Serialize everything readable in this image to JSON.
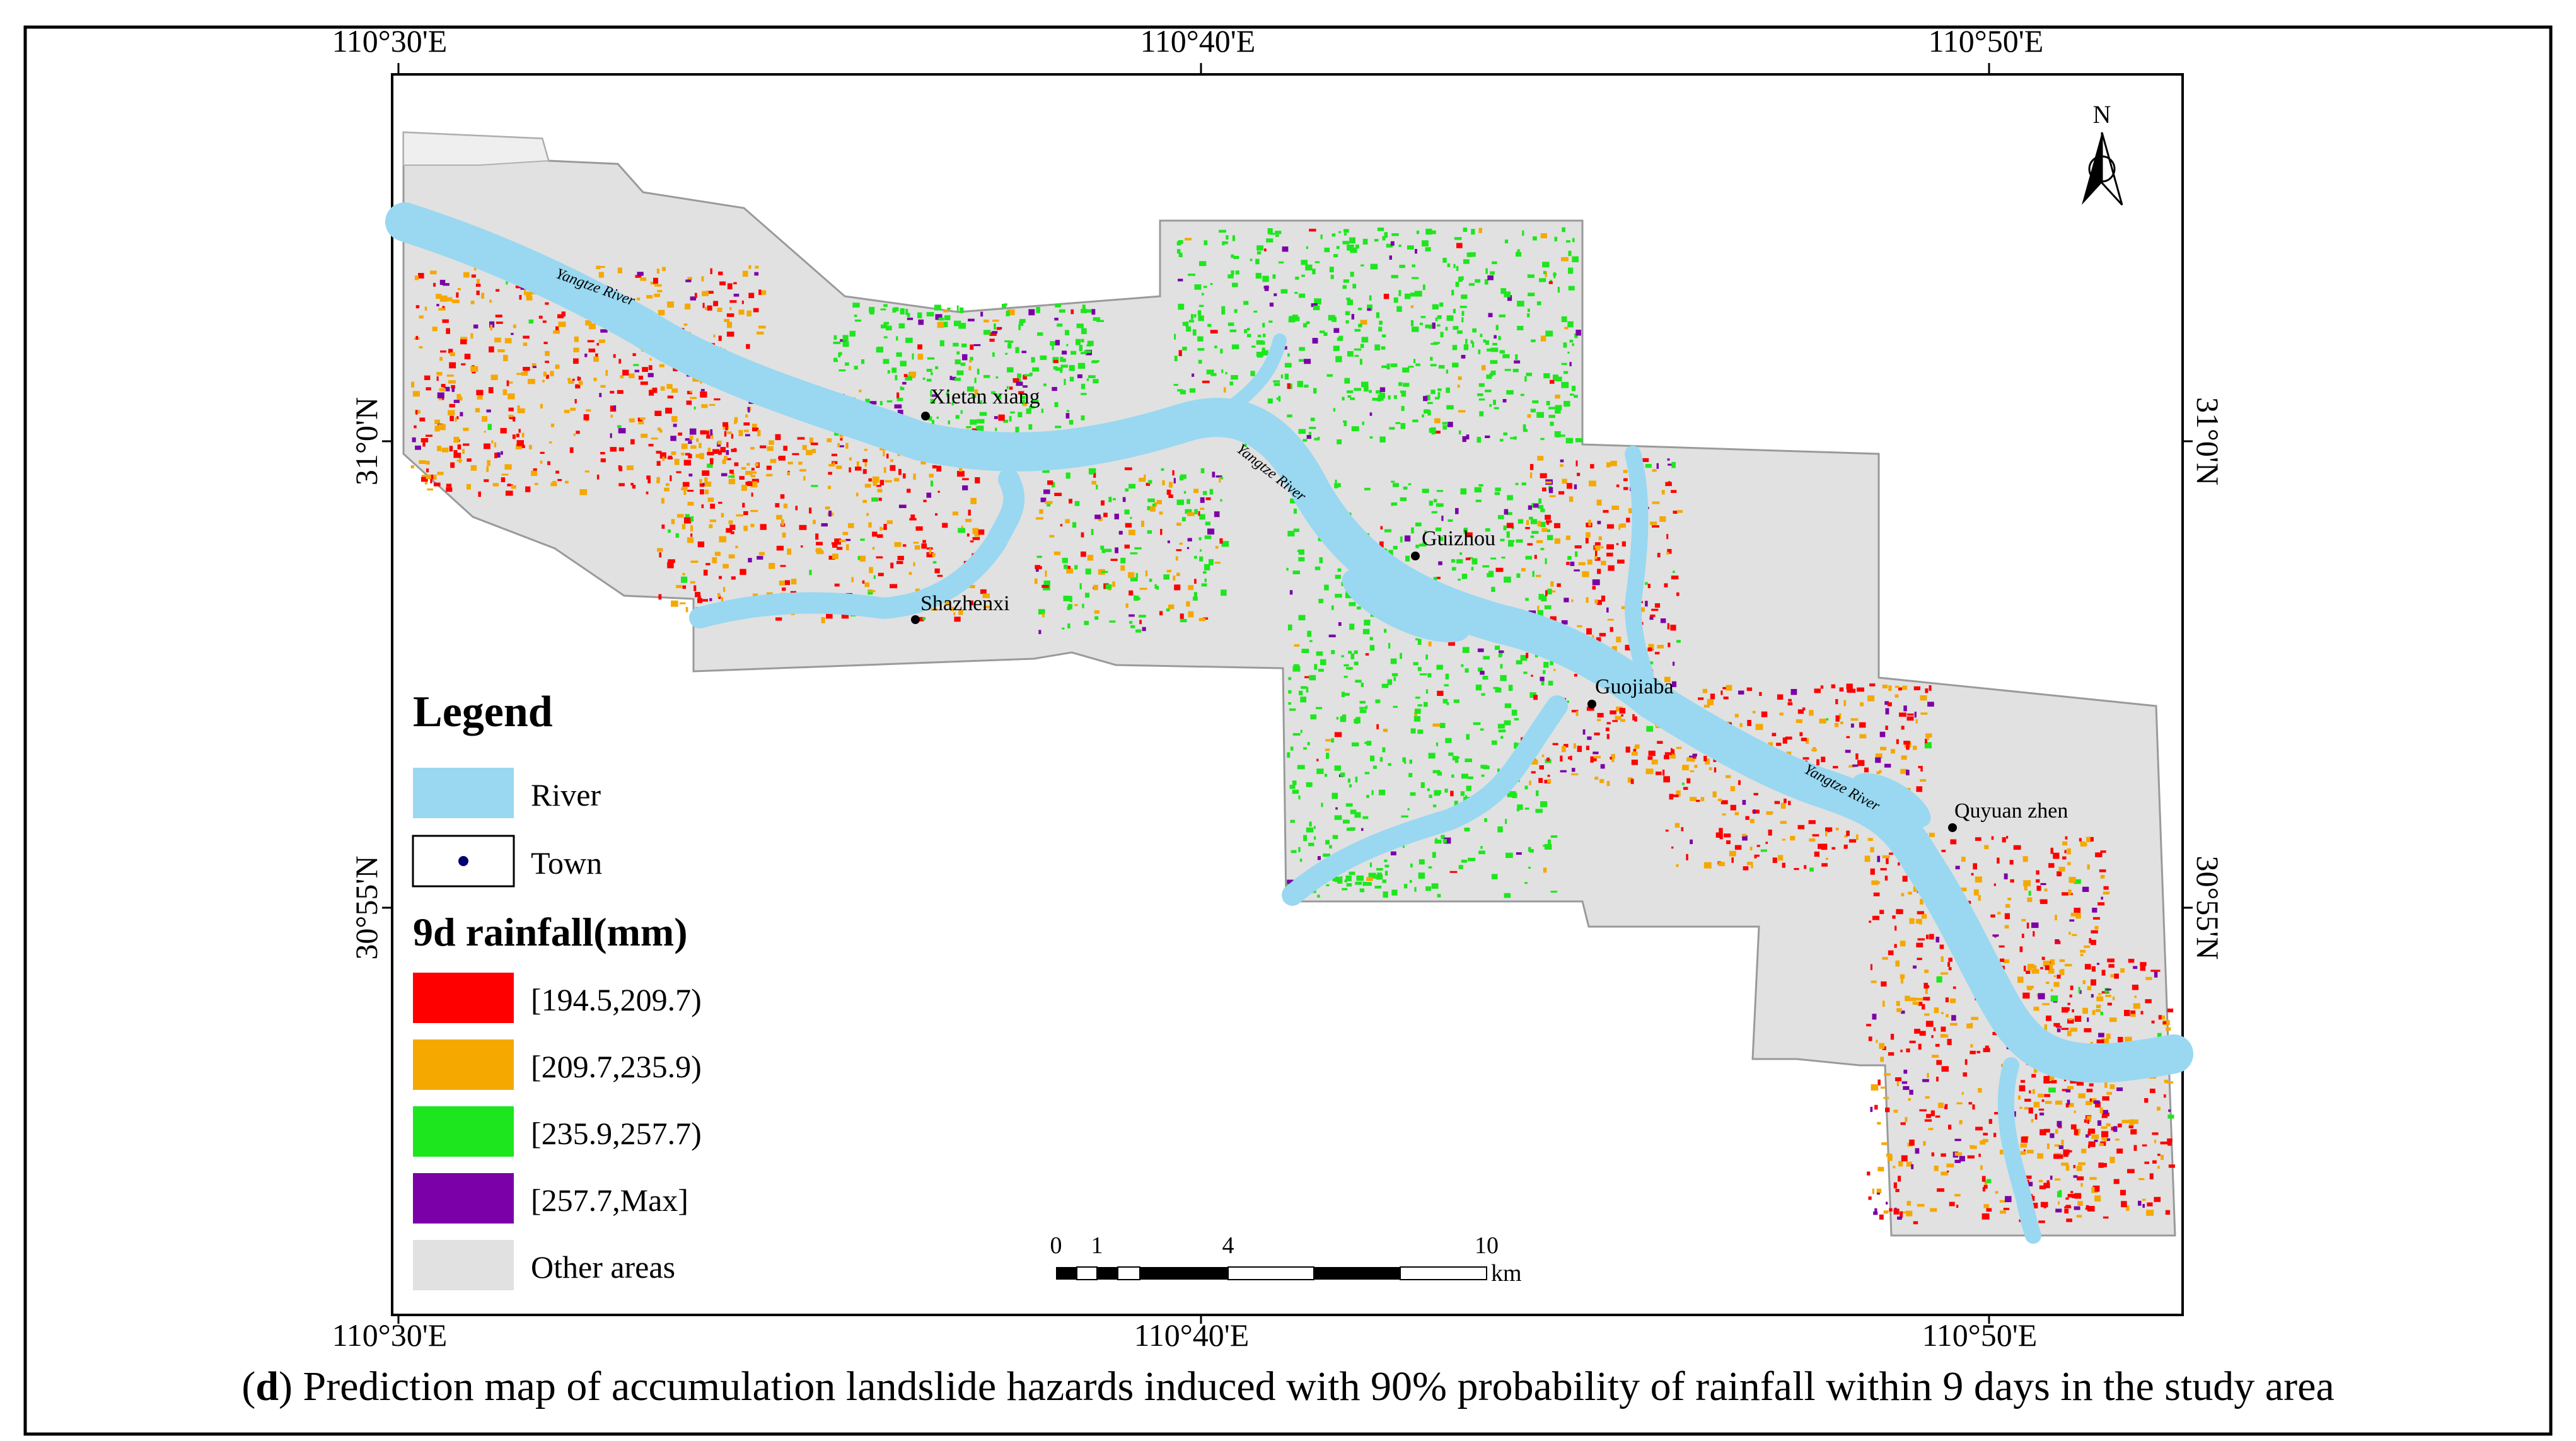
{
  "map": {
    "coords": {
      "top": [
        "110°30'E",
        "110°40'E",
        "110°50'E"
      ],
      "bottom": [
        "110°30'E",
        "110°40'E",
        "110°50'E"
      ],
      "left": [
        "31°0'N",
        "30°55'N"
      ],
      "right": [
        "31°0'N",
        "30°55'N"
      ]
    },
    "north_label": "N",
    "river_labels": [
      "Yangtze River",
      "Yangtze River",
      "Yangtze River"
    ],
    "towns": [
      "Xietan xiang",
      "Shazhenxi",
      "Guizhou",
      "Guojiaba",
      "Quyuan zhen"
    ],
    "legend": {
      "title": "Legend",
      "items": [
        {
          "label": "River",
          "color": "#99d8f0"
        },
        {
          "label": "Town",
          "color": "#00006e"
        }
      ],
      "rainfall_title": "9d rainfall(mm)",
      "classes": [
        {
          "label": "[194.5,209.7)",
          "color": "#ff0000"
        },
        {
          "label": "[209.7,235.9)",
          "color": "#f5a800"
        },
        {
          "label": "[235.9,257.7)",
          "color": "#1ee61e"
        },
        {
          "label": "[257.7,Max]",
          "color": "#7b00a8"
        },
        {
          "label": "Other areas",
          "color": "#e1e1e1"
        }
      ]
    },
    "scale": {
      "ticks": [
        "0",
        "1",
        "4",
        "10"
      ],
      "unit": "km"
    }
  },
  "caption": {
    "label": "d",
    "text": "Prediction map of accumulation landslide hazards induced with 90% probability of rainfall within 9 days in the study area"
  }
}
